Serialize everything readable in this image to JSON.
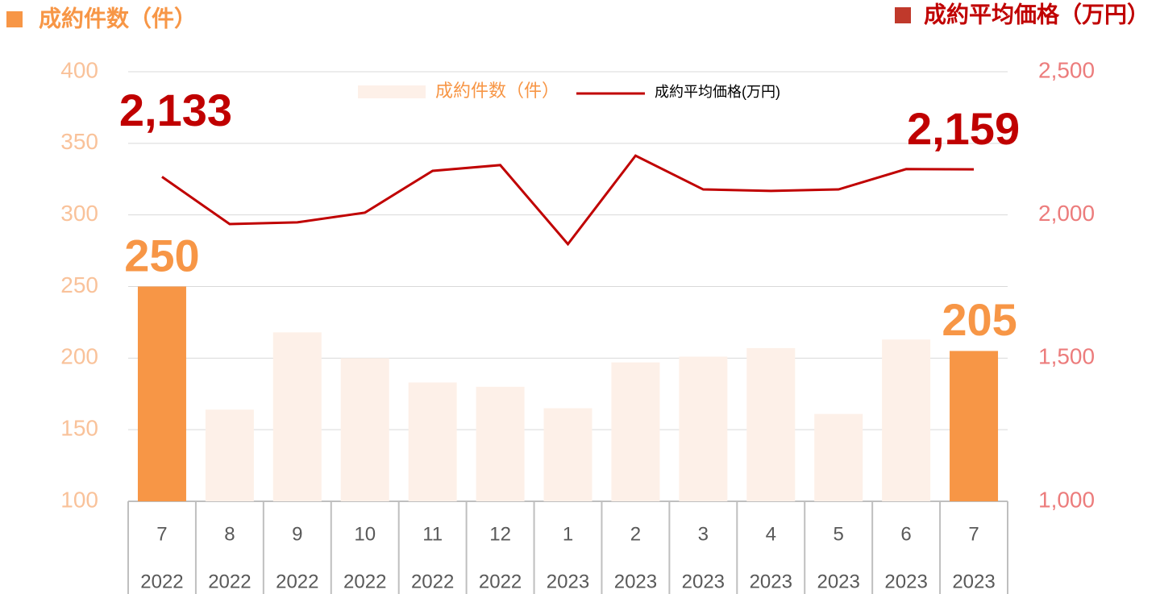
{
  "chart_data": {
    "type": "combo",
    "y_label": "成約件数（件）",
    "y2_label": "成約平均価格（万円）",
    "categories": [
      "7",
      "8",
      "9",
      "10",
      "11",
      "12",
      "1",
      "2",
      "3",
      "4",
      "5",
      "6",
      "7"
    ],
    "years": [
      "2022",
      "2022",
      "2022",
      "2022",
      "2022",
      "2022",
      "2023",
      "2023",
      "2023",
      "2023",
      "2023",
      "2023",
      "2023"
    ],
    "series": [
      {
        "name": "成約件数（件）",
        "type": "bar",
        "axis": "y",
        "color": "#fdf0e8",
        "colors": [
          "#f79646",
          "#fdf0e8",
          "#fdf0e8",
          "#fdf0e8",
          "#fdf0e8",
          "#fdf0e8",
          "#fdf0e8",
          "#fdf0e8",
          "#fdf0e8",
          "#fdf0e8",
          "#fdf0e8",
          "#fdf0e8",
          "#f79646"
        ],
        "values": [
          250,
          164,
          218,
          200,
          183,
          180,
          165,
          197,
          201,
          207,
          161,
          213,
          205
        ],
        "value_labels": [
          "250",
          null,
          null,
          null,
          null,
          null,
          null,
          null,
          null,
          null,
          null,
          null,
          "205"
        ]
      },
      {
        "name": "成約平均価格(万円)",
        "type": "line",
        "axis": "y2",
        "color": "#c00000",
        "values": [
          2133,
          1968,
          1974,
          2008,
          2154,
          2174,
          1898,
          2207,
          2089,
          2084,
          2089,
          2160,
          2159
        ],
        "value_labels": [
          "2,133",
          null,
          null,
          null,
          null,
          null,
          null,
          null,
          null,
          null,
          null,
          null,
          "2,159"
        ]
      }
    ],
    "ylim": [
      100,
      400
    ],
    "yticks": [
      100,
      150,
      200,
      250,
      300,
      350,
      400
    ],
    "y2lim": [
      1000,
      2500
    ],
    "y2ticks": [
      {
        "value": 1000,
        "label": "1,000"
      },
      {
        "value": 1500,
        "label": "1,500"
      },
      {
        "value": 2000,
        "label": "2,000"
      },
      {
        "value": 2500,
        "label": "2,500"
      }
    ],
    "grid": true
  }
}
